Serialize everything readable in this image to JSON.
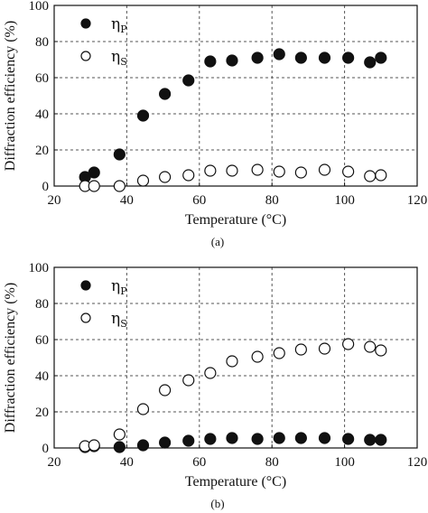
{
  "chart_data": [
    {
      "type": "scatter",
      "caption": "(a)",
      "xlabel": "Temperature (°C)",
      "ylabel": "Diffraction efficiency (%)",
      "xlim": [
        20,
        120
      ],
      "ylim": [
        0,
        100
      ],
      "xticks": [
        20,
        40,
        60,
        80,
        100,
        120
      ],
      "yticks": [
        0,
        20,
        40,
        60,
        80,
        100
      ],
      "grid": true,
      "legend_position": "top-left",
      "series": [
        {
          "name": "ηP",
          "symbol": "P",
          "marker": "filled-circle",
          "x": [
            28.5,
            31,
            38,
            44.5,
            50.5,
            57,
            63,
            69,
            76,
            82,
            88,
            94.5,
            101,
            107,
            110
          ],
          "y": [
            5,
            7.5,
            17.5,
            39,
            51,
            58.5,
            69,
            69.5,
            71,
            73,
            71,
            71,
            71,
            68.5,
            71
          ]
        },
        {
          "name": "ηS",
          "symbol": "S",
          "marker": "open-circle",
          "x": [
            28.5,
            31,
            38,
            44.5,
            50.5,
            57,
            63,
            69,
            76,
            82,
            88,
            94.5,
            101,
            107,
            110
          ],
          "y": [
            0,
            0,
            0,
            3,
            5,
            6,
            8.5,
            8.5,
            9,
            8,
            7.5,
            9,
            8,
            5.5,
            6
          ]
        }
      ]
    },
    {
      "type": "scatter",
      "caption": "(b)",
      "xlabel": "Temperature (°C)",
      "ylabel": "Diffraction efficiency (%)",
      "xlim": [
        20,
        120
      ],
      "ylim": [
        0,
        100
      ],
      "xticks": [
        20,
        40,
        60,
        80,
        100,
        120
      ],
      "yticks": [
        0,
        20,
        40,
        60,
        80,
        100
      ],
      "grid": true,
      "legend_position": "top-left",
      "series": [
        {
          "name": "ηP",
          "symbol": "P",
          "marker": "filled-circle",
          "x": [
            28.5,
            31,
            38,
            44.5,
            50.5,
            57,
            63,
            69,
            76,
            82,
            88,
            94.5,
            101,
            107,
            110
          ],
          "y": [
            0.5,
            1,
            0.5,
            1.5,
            3,
            4,
            5,
            5.5,
            5,
            5.5,
            5.5,
            5.5,
            5,
            4.5,
            4.5
          ]
        },
        {
          "name": "ηS",
          "symbol": "S",
          "marker": "open-circle",
          "x": [
            28.5,
            31,
            38,
            44.5,
            50.5,
            57,
            63,
            69,
            76,
            82,
            88,
            94.5,
            101,
            107,
            110
          ],
          "y": [
            1,
            1.5,
            7.5,
            21.5,
            32,
            37.5,
            41.5,
            48,
            50.5,
            52.5,
            54.5,
            55,
            57.5,
            56,
            54
          ]
        }
      ]
    }
  ]
}
